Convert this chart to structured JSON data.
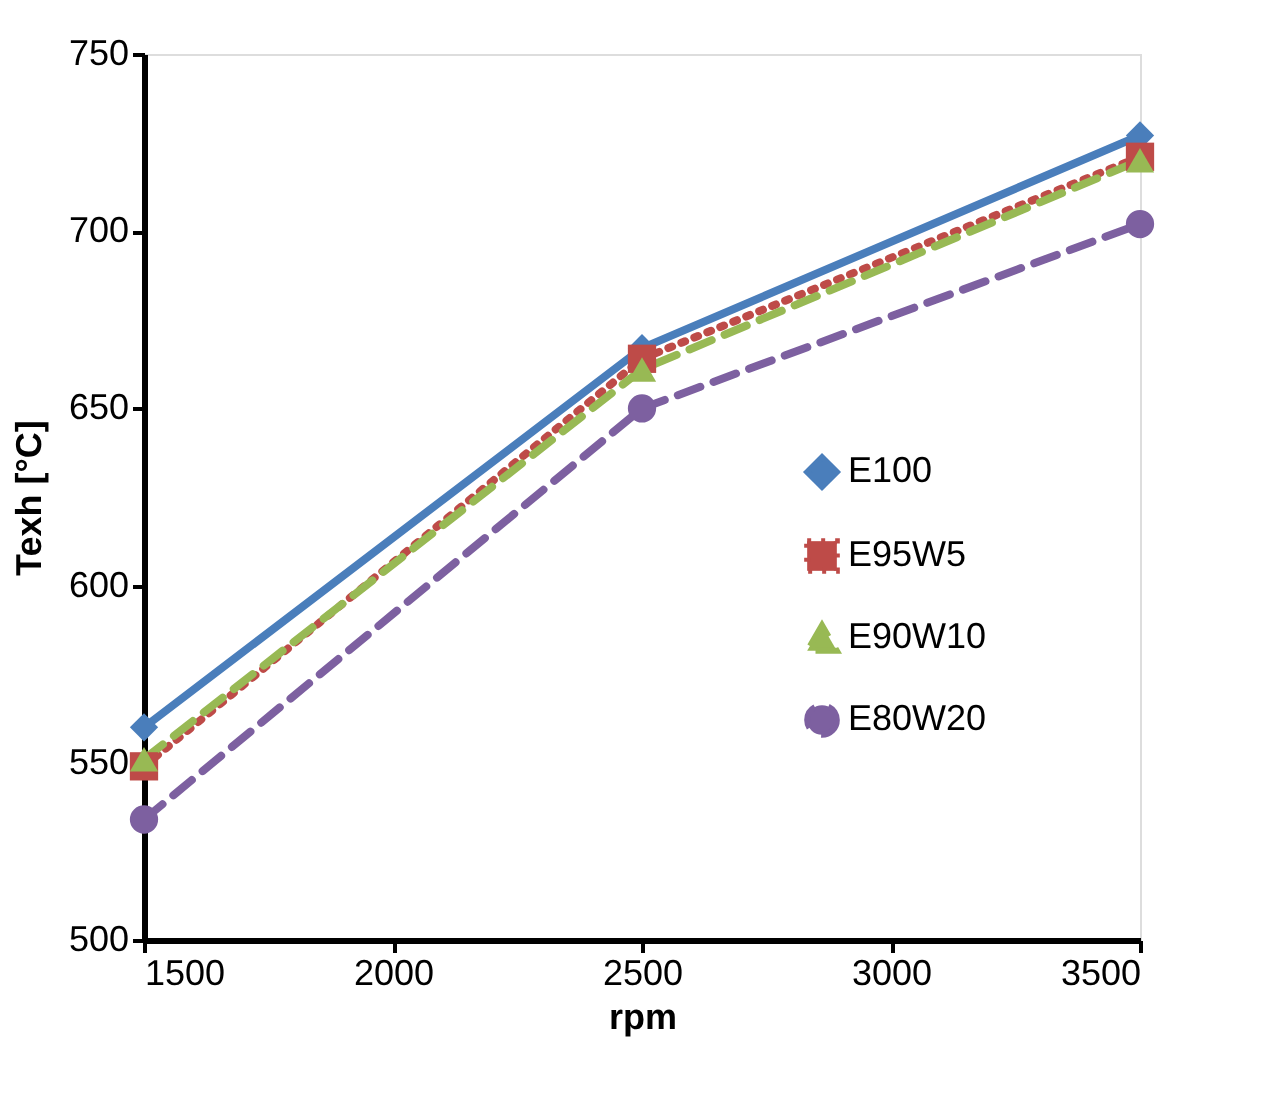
{
  "chart_data": {
    "type": "line",
    "xlabel": "rpm",
    "ylabel": "Texh [°C]",
    "x": [
      1500,
      2500,
      3500
    ],
    "series": [
      {
        "name": "E100",
        "color": "#4a7ebb",
        "marker": "diamond",
        "line_style": "solid",
        "values": [
          560,
          667,
          727
        ]
      },
      {
        "name": "E95W5",
        "color": "#be4b48",
        "marker": "square",
        "line_style": "dotted",
        "values": [
          549,
          664,
          721
        ]
      },
      {
        "name": "E90W10",
        "color": "#98b954",
        "marker": "triangle",
        "line_style": "dashed",
        "values": [
          551,
          661,
          720
        ]
      },
      {
        "name": "E80W20",
        "color": "#7d60a0",
        "marker": "circle",
        "line_style": "dashed",
        "values": [
          534,
          650,
          702
        ]
      }
    ],
    "xlim": [
      1500,
      3500
    ],
    "xticks": [
      1500,
      2000,
      2500,
      3000,
      3500
    ],
    "ylim": [
      500,
      750
    ],
    "yticks": [
      500,
      550,
      600,
      650,
      700,
      750
    ],
    "grid": false,
    "legend": "right"
  }
}
